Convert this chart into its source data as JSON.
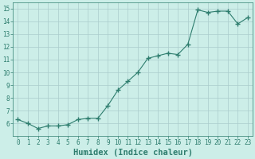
{
  "x": [
    0,
    1,
    2,
    3,
    4,
    5,
    6,
    7,
    8,
    9,
    10,
    11,
    12,
    13,
    14,
    15,
    16,
    17,
    18,
    19,
    20,
    21,
    22,
    23
  ],
  "y": [
    6.3,
    6.0,
    5.6,
    5.8,
    5.8,
    5.9,
    6.3,
    6.4,
    6.4,
    7.4,
    8.6,
    9.3,
    10.0,
    11.1,
    11.3,
    11.5,
    11.4,
    12.2,
    14.9,
    14.7,
    14.8,
    14.8,
    13.8,
    14.3
  ],
  "line_color": "#2e7d6e",
  "marker": "+",
  "marker_size": 4,
  "bg_color": "#cceee8",
  "grid_color": "#aacccc",
  "xlabel": "Humidex (Indice chaleur)",
  "xlim": [
    -0.5,
    23.5
  ],
  "ylim": [
    5.0,
    15.5
  ],
  "yticks": [
    6,
    7,
    8,
    9,
    10,
    11,
    12,
    13,
    14,
    15
  ],
  "xticks": [
    0,
    1,
    2,
    3,
    4,
    5,
    6,
    7,
    8,
    9,
    10,
    11,
    12,
    13,
    14,
    15,
    16,
    17,
    18,
    19,
    20,
    21,
    22,
    23
  ],
  "tick_label_fontsize": 5.5,
  "xlabel_fontsize": 7.5,
  "tick_color": "#2e7d6e",
  "line_width": 0.8,
  "marker_color": "#2e7d6e"
}
